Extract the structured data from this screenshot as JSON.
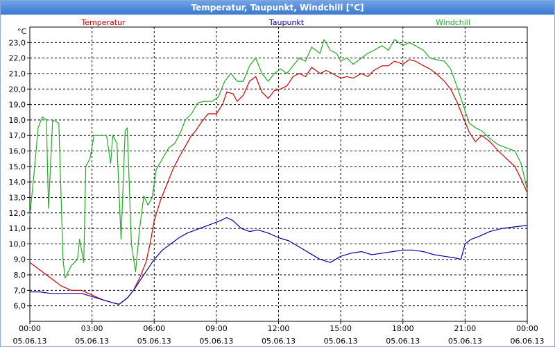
{
  "window": {
    "title": "Temperatur, Taupunkt, Windchill [°C]"
  },
  "chart_data": {
    "type": "line",
    "title": "Temperatur, Taupunkt, Windchill [°C]",
    "ylabel": "°C",
    "xlabel": "",
    "ylim": [
      5.0,
      24.0
    ],
    "xlim": [
      0,
      24
    ],
    "y_ticks": [
      "6,0",
      "7,0",
      "8,0",
      "9,0",
      "10,0",
      "11,0",
      "12,0",
      "13,0",
      "14,0",
      "15,0",
      "16,0",
      "17,0",
      "18,0",
      "19,0",
      "20,0",
      "21,0",
      "22,0",
      "23,0"
    ],
    "x_ticks": [
      {
        "time": "00:00",
        "date": "05.06.13"
      },
      {
        "time": "03:00",
        "date": "05.06.13"
      },
      {
        "time": "06:00",
        "date": "05.06.13"
      },
      {
        "time": "09:00",
        "date": "05.06.13"
      },
      {
        "time": "12:00",
        "date": "05.06.13"
      },
      {
        "time": "15:00",
        "date": "05.06.13"
      },
      {
        "time": "18:00",
        "date": "05.06.13"
      },
      {
        "time": "21:00",
        "date": "05.06.13"
      },
      {
        "time": "00:00",
        "date": "06.06.13"
      }
    ],
    "grid": true,
    "legend_position": "top",
    "series": [
      {
        "name": "Temperatur",
        "color": "#cc0000",
        "points": [
          [
            0,
            8.8
          ],
          [
            0.5,
            8.3
          ],
          [
            1,
            7.8
          ],
          [
            1.5,
            7.3
          ],
          [
            2,
            7.0
          ],
          [
            2.5,
            7.0
          ],
          [
            3,
            6.7
          ],
          [
            3.5,
            6.4
          ],
          [
            4,
            6.2
          ],
          [
            4.3,
            6.1
          ],
          [
            4.7,
            6.5
          ],
          [
            5,
            7.0
          ],
          [
            5.3,
            7.8
          ],
          [
            5.6,
            8.8
          ],
          [
            5.8,
            10.0
          ],
          [
            6,
            11.5
          ],
          [
            6.3,
            12.8
          ],
          [
            6.6,
            13.8
          ],
          [
            6.9,
            14.8
          ],
          [
            7.2,
            15.6
          ],
          [
            7.5,
            16.3
          ],
          [
            7.8,
            17.0
          ],
          [
            8,
            17.3
          ],
          [
            8.3,
            17.9
          ],
          [
            8.6,
            18.4
          ],
          [
            9,
            18.4
          ],
          [
            9.3,
            19.0
          ],
          [
            9.5,
            19.8
          ],
          [
            9.8,
            19.7
          ],
          [
            10,
            19.2
          ],
          [
            10.3,
            19.6
          ],
          [
            10.6,
            20.5
          ],
          [
            10.9,
            20.8
          ],
          [
            11.2,
            19.8
          ],
          [
            11.5,
            19.4
          ],
          [
            11.8,
            19.9
          ],
          [
            12.1,
            20.0
          ],
          [
            12.4,
            20.2
          ],
          [
            12.7,
            20.8
          ],
          [
            13,
            21.0
          ],
          [
            13.3,
            20.8
          ],
          [
            13.6,
            21.4
          ],
          [
            14,
            21.0
          ],
          [
            14.3,
            21.2
          ],
          [
            14.6,
            21.0
          ],
          [
            15,
            20.7
          ],
          [
            15.3,
            20.8
          ],
          [
            15.6,
            20.7
          ],
          [
            16,
            21.0
          ],
          [
            16.3,
            20.8
          ],
          [
            16.6,
            21.2
          ],
          [
            17,
            21.5
          ],
          [
            17.3,
            21.5
          ],
          [
            17.6,
            21.8
          ],
          [
            18,
            21.6
          ],
          [
            18.3,
            21.9
          ],
          [
            18.6,
            21.8
          ],
          [
            19,
            21.5
          ],
          [
            19.3,
            21.3
          ],
          [
            19.6,
            21.0
          ],
          [
            20,
            20.5
          ],
          [
            20.3,
            20.0
          ],
          [
            20.6,
            19.2
          ],
          [
            20.9,
            18.2
          ],
          [
            21.2,
            17.2
          ],
          [
            21.5,
            16.6
          ],
          [
            21.8,
            17.0
          ],
          [
            22.2,
            16.6
          ],
          [
            22.6,
            16.0
          ],
          [
            23,
            15.5
          ],
          [
            23.4,
            15.0
          ],
          [
            23.7,
            14.2
          ],
          [
            24,
            13.3
          ]
        ]
      },
      {
        "name": "Taupunkt",
        "color": "#0000aa",
        "points": [
          [
            0,
            6.9
          ],
          [
            0.5,
            6.9
          ],
          [
            1,
            6.8
          ],
          [
            1.5,
            6.8
          ],
          [
            2,
            6.8
          ],
          [
            2.5,
            6.8
          ],
          [
            3,
            6.6
          ],
          [
            3.5,
            6.4
          ],
          [
            4,
            6.2
          ],
          [
            4.3,
            6.1
          ],
          [
            4.7,
            6.5
          ],
          [
            5,
            7.0
          ],
          [
            5.3,
            7.6
          ],
          [
            5.6,
            8.2
          ],
          [
            6,
            9.0
          ],
          [
            6.4,
            9.6
          ],
          [
            6.8,
            10.0
          ],
          [
            7.2,
            10.4
          ],
          [
            7.6,
            10.7
          ],
          [
            8,
            10.9
          ],
          [
            8.4,
            11.1
          ],
          [
            8.8,
            11.3
          ],
          [
            9.2,
            11.5
          ],
          [
            9.5,
            11.7
          ],
          [
            9.8,
            11.5
          ],
          [
            10.2,
            11.0
          ],
          [
            10.6,
            10.8
          ],
          [
            11,
            10.9
          ],
          [
            11.5,
            10.7
          ],
          [
            12,
            10.4
          ],
          [
            12.5,
            10.2
          ],
          [
            13,
            9.8
          ],
          [
            13.5,
            9.4
          ],
          [
            14,
            9.0
          ],
          [
            14.5,
            8.8
          ],
          [
            15,
            9.2
          ],
          [
            15.5,
            9.4
          ],
          [
            16,
            9.5
          ],
          [
            16.5,
            9.3
          ],
          [
            17,
            9.4
          ],
          [
            17.5,
            9.5
          ],
          [
            18,
            9.6
          ],
          [
            18.5,
            9.6
          ],
          [
            19,
            9.5
          ],
          [
            19.5,
            9.3
          ],
          [
            20,
            9.2
          ],
          [
            20.5,
            9.1
          ],
          [
            20.8,
            9.0
          ],
          [
            21,
            10.0
          ],
          [
            21.3,
            10.3
          ],
          [
            21.7,
            10.5
          ],
          [
            22.2,
            10.8
          ],
          [
            22.8,
            11.0
          ],
          [
            23.4,
            11.1
          ],
          [
            24,
            11.2
          ]
        ]
      },
      {
        "name": "Windchill",
        "color": "#22aa22",
        "points": [
          [
            0,
            11.8
          ],
          [
            0.2,
            14.5
          ],
          [
            0.4,
            17.5
          ],
          [
            0.6,
            18.2
          ],
          [
            0.8,
            18.0
          ],
          [
            0.9,
            12.3
          ],
          [
            1.1,
            18.0
          ],
          [
            1.4,
            17.8
          ],
          [
            1.6,
            9.0
          ],
          [
            1.7,
            7.8
          ],
          [
            2,
            8.6
          ],
          [
            2.3,
            9.0
          ],
          [
            2.4,
            10.3
          ],
          [
            2.6,
            8.8
          ],
          [
            2.7,
            15.0
          ],
          [
            2.9,
            15.5
          ],
          [
            3.1,
            17.0
          ],
          [
            3.5,
            17.0
          ],
          [
            3.7,
            17.0
          ],
          [
            3.9,
            15.2
          ],
          [
            4.0,
            17.0
          ],
          [
            4.2,
            16.5
          ],
          [
            4.4,
            10.3
          ],
          [
            4.6,
            17.3
          ],
          [
            4.7,
            17.5
          ],
          [
            4.9,
            10.0
          ],
          [
            5.1,
            8.2
          ],
          [
            5.3,
            11.0
          ],
          [
            5.5,
            13.1
          ],
          [
            5.7,
            12.5
          ],
          [
            5.9,
            13.0
          ],
          [
            6.1,
            14.8
          ],
          [
            6.4,
            15.5
          ],
          [
            6.7,
            16.2
          ],
          [
            7,
            16.5
          ],
          [
            7.3,
            17.3
          ],
          [
            7.5,
            18.0
          ],
          [
            7.8,
            18.4
          ],
          [
            8.1,
            19.1
          ],
          [
            8.4,
            19.2
          ],
          [
            8.8,
            19.2
          ],
          [
            9.1,
            19.5
          ],
          [
            9.4,
            20.5
          ],
          [
            9.7,
            21.0
          ],
          [
            10.0,
            20.5
          ],
          [
            10.3,
            20.5
          ],
          [
            10.6,
            21.5
          ],
          [
            10.9,
            22.0
          ],
          [
            11.2,
            21.0
          ],
          [
            11.5,
            20.5
          ],
          [
            11.8,
            21.0
          ],
          [
            12.1,
            21.3
          ],
          [
            12.4,
            21.0
          ],
          [
            12.7,
            21.5
          ],
          [
            13,
            22.0
          ],
          [
            13.3,
            21.8
          ],
          [
            13.6,
            22.7
          ],
          [
            14,
            22.3
          ],
          [
            14.2,
            23.2
          ],
          [
            14.5,
            22.5
          ],
          [
            14.8,
            22.3
          ],
          [
            15,
            21.8
          ],
          [
            15.3,
            22.0
          ],
          [
            15.6,
            21.6
          ],
          [
            16,
            22.0
          ],
          [
            16.3,
            22.3
          ],
          [
            16.6,
            22.5
          ],
          [
            17,
            22.8
          ],
          [
            17.3,
            22.5
          ],
          [
            17.6,
            23.2
          ],
          [
            18,
            22.8
          ],
          [
            18.3,
            23.0
          ],
          [
            18.6,
            22.8
          ],
          [
            19,
            22.5
          ],
          [
            19.3,
            22.0
          ],
          [
            19.6,
            21.9
          ],
          [
            20,
            21.8
          ],
          [
            20.3,
            21.3
          ],
          [
            20.6,
            20.2
          ],
          [
            20.9,
            19.0
          ],
          [
            21.2,
            17.8
          ],
          [
            21.5,
            17.5
          ],
          [
            21.8,
            17.3
          ],
          [
            22.2,
            16.8
          ],
          [
            22.6,
            16.4
          ],
          [
            23,
            16.2
          ],
          [
            23.4,
            16.0
          ],
          [
            23.7,
            15.2
          ],
          [
            24,
            13.5
          ]
        ]
      }
    ]
  }
}
